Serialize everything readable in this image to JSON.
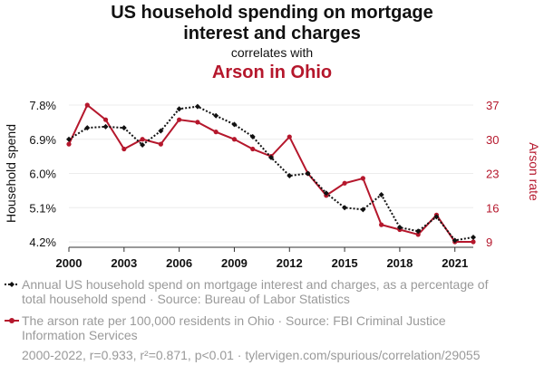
{
  "header": {
    "title_line1": "US household spending on mortgage",
    "title_line2": "interest and charges",
    "correlates": "correlates with",
    "subtitle": "Arson in Ohio"
  },
  "colors": {
    "series1": "#111111",
    "series2": "#b5172c",
    "muted": "#9a9a9a"
  },
  "chart_data": {
    "type": "line",
    "x": [
      2000,
      2001,
      2002,
      2003,
      2004,
      2005,
      2006,
      2007,
      2008,
      2009,
      2010,
      2011,
      2012,
      2013,
      2014,
      2015,
      2016,
      2017,
      2018,
      2019,
      2020,
      2021,
      2022
    ],
    "xticks": [
      2000,
      2003,
      2006,
      2009,
      2012,
      2015,
      2018,
      2021
    ],
    "xlim": [
      2000,
      2022
    ],
    "series": [
      {
        "name": "Household spend",
        "axis": "left",
        "style": "dotted-with-diamonds",
        "values": [
          6.9,
          7.2,
          7.23,
          7.2,
          6.75,
          7.12,
          7.7,
          7.76,
          7.52,
          7.29,
          6.97,
          6.42,
          5.94,
          6.0,
          5.48,
          5.1,
          5.05,
          5.44,
          4.58,
          4.48,
          4.86,
          4.24,
          4.32
        ]
      },
      {
        "name": "Arson rate",
        "axis": "right",
        "style": "solid-with-dots",
        "values": [
          29,
          37,
          34,
          28,
          30,
          29,
          34,
          33.5,
          31.5,
          30,
          28,
          26.5,
          30.5,
          23,
          18.5,
          21,
          22,
          12.5,
          11.5,
          10.5,
          14.5,
          9,
          9
        ]
      }
    ],
    "y_left": {
      "label": "Household spend",
      "ticks": [
        "7.8%",
        "6.9%",
        "6.0%",
        "5.1%",
        "4.2%"
      ],
      "tick_values": [
        7.8,
        6.9,
        6.0,
        5.1,
        4.2
      ],
      "lim": [
        4.2,
        7.8
      ]
    },
    "y_right": {
      "label": "Arson rate",
      "ticks": [
        "37",
        "30",
        "23",
        "16",
        "9"
      ],
      "tick_values": [
        37,
        30,
        23,
        16,
        9
      ],
      "lim": [
        9,
        37
      ]
    },
    "grid": true
  },
  "legend": [
    {
      "line1": "Annual US household spend on mortgage interest and charges, as a percentage of",
      "line2": "total household spend · Source: Bureau of Labor Statistics"
    },
    {
      "line1": "The arson rate per 100,000 residents in Ohio · Source: FBI Criminal Justice",
      "line2": "Information Services"
    }
  ],
  "footer": "2000-2022, r=0.933, r²=0.871, p<0.01 · tylervigen.com/spurious/correlation/29055"
}
